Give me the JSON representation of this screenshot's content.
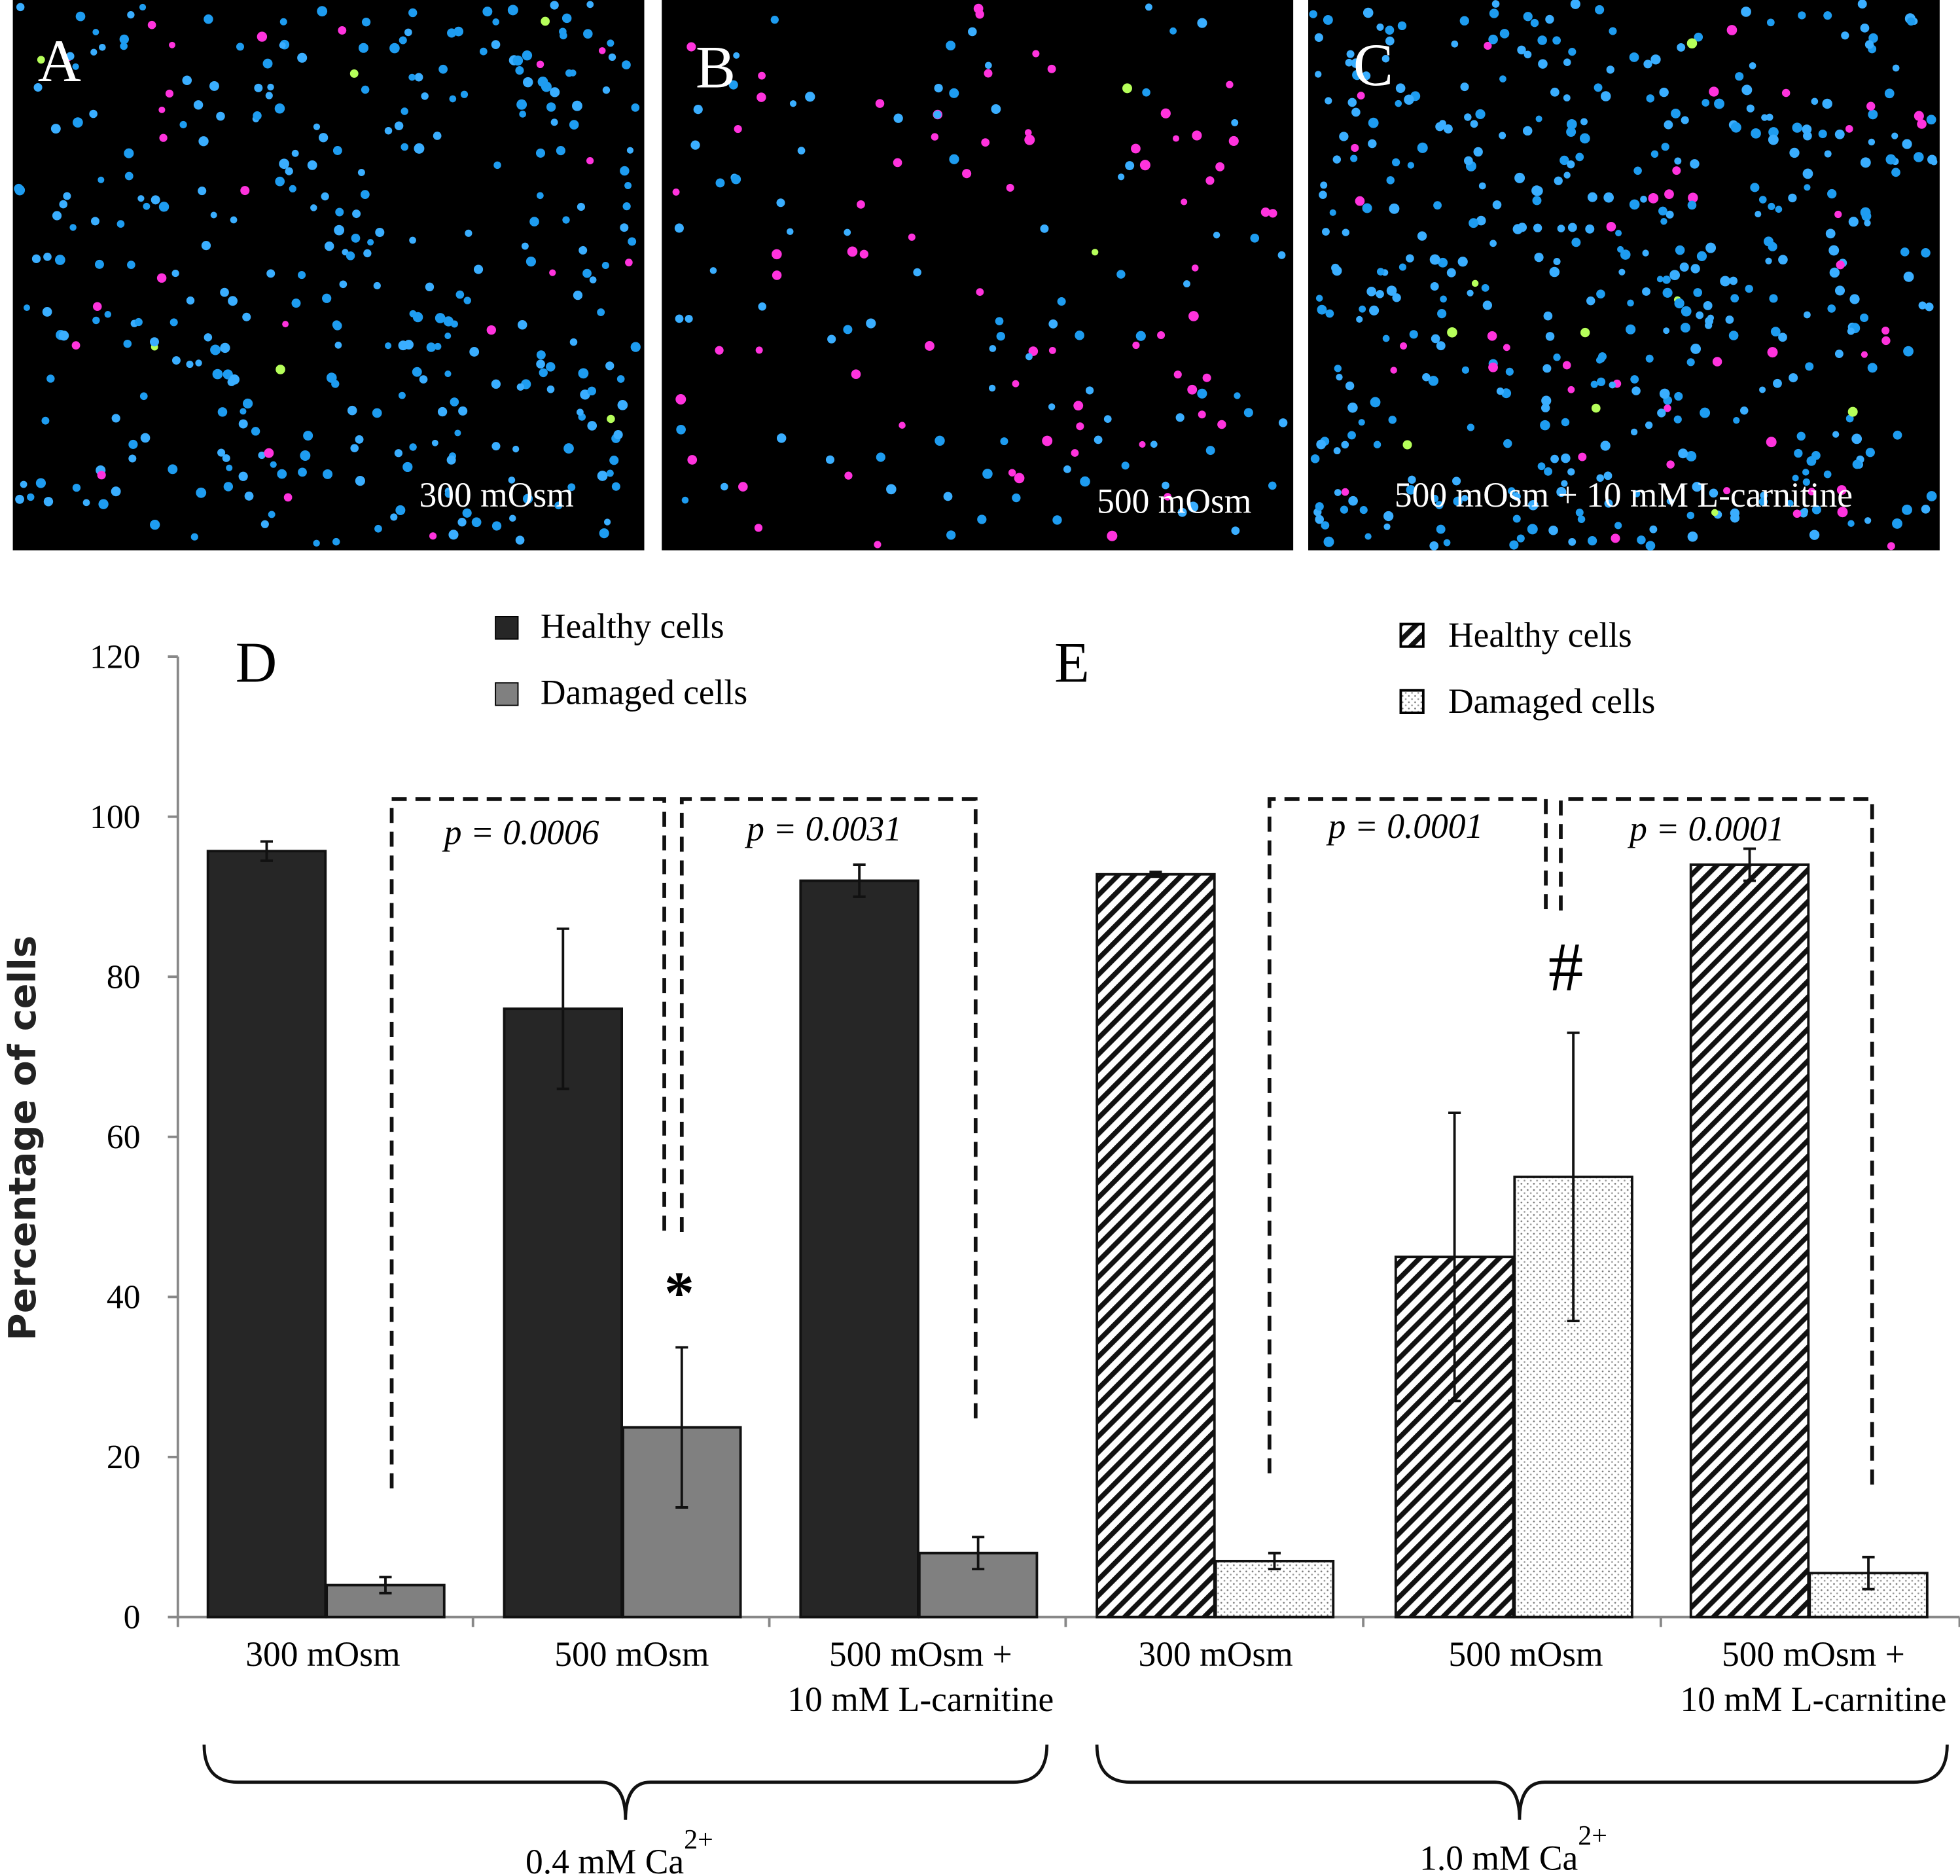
{
  "panels": [
    {
      "letter": "A",
      "caption": "300 mOsm"
    },
    {
      "letter": "B",
      "caption": "500 mOsm"
    },
    {
      "letter": "C",
      "caption": "500 mOsm + 10 mM L-carnitine"
    }
  ],
  "chart_data": {
    "type": "bar",
    "ylabel": "Percentage of cells",
    "ylim": [
      0,
      120
    ],
    "yticks": [
      0,
      20,
      40,
      60,
      80,
      100,
      120
    ],
    "grid": false,
    "charts": [
      {
        "panel_label": "D",
        "legend": [
          "Healthy cells",
          "Damaged cells"
        ],
        "colors": {
          "healthy": "#262626",
          "damaged": "#808080"
        },
        "categories": [
          "300 mOsm",
          "500 mOsm",
          "500 mOsm +\n10 mM L-carnitine"
        ],
        "series": [
          {
            "name": "Healthy cells",
            "values": [
              95.7,
              76.0,
              92.0
            ],
            "errors": [
              1.2,
              10.0,
              2.0
            ]
          },
          {
            "name": "Damaged cells",
            "values": [
              4.0,
              23.7,
              8.0
            ],
            "errors": [
              1.0,
              10.0,
              2.0
            ]
          }
        ],
        "p_values": [
          "p = 0.0006",
          "p = 0.0031"
        ],
        "significance_mark": "*",
        "group_label": "0.4 mM Ca",
        "group_label_sup": "2+"
      },
      {
        "panel_label": "E",
        "legend": [
          "Healthy cells",
          "Damaged cells"
        ],
        "patterns": {
          "healthy": "diagonal-hatch",
          "damaged": "dotted"
        },
        "categories": [
          "300 mOsm",
          "500 mOsm",
          "500 mOsm +\n10 mM L-carnitine"
        ],
        "series": [
          {
            "name": "Healthy cells",
            "values": [
              92.8,
              45.0,
              94.0
            ],
            "errors": [
              0.3,
              18.0,
              2.0
            ]
          },
          {
            "name": "Damaged cells",
            "values": [
              7.0,
              55.0,
              5.5
            ],
            "errors": [
              1.0,
              18.0,
              2.0
            ]
          }
        ],
        "p_values": [
          "p = 0.0001",
          "p = 0.0001"
        ],
        "significance_mark": "#",
        "group_label": "1.0 mM Ca",
        "group_label_sup": "2+"
      }
    ]
  }
}
